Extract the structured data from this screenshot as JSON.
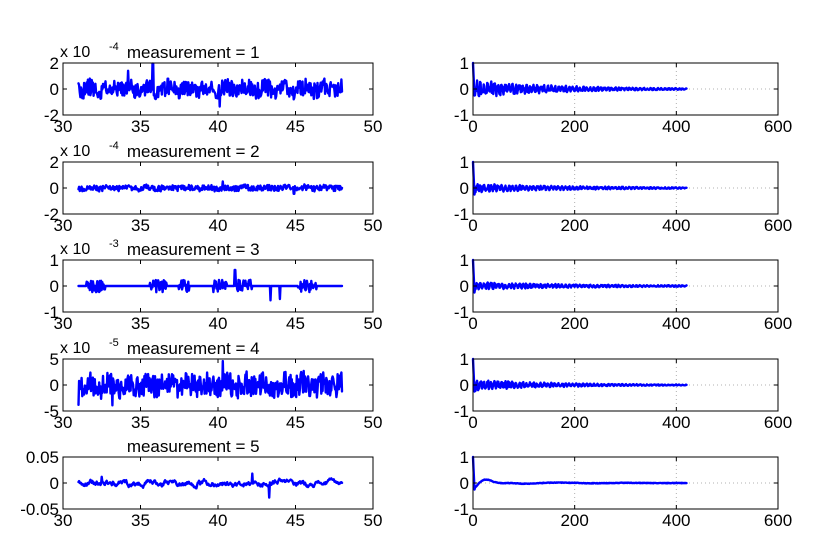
{
  "line_color": "#0000ff",
  "chart_data": [
    {
      "type": "line",
      "title": "measurement = 1",
      "scale_exponent": "x 10",
      "scale_power": "-4",
      "xlim": [
        30,
        50
      ],
      "ylim": [
        -2,
        2
      ],
      "x_ticks": [
        "30",
        "35",
        "40",
        "45",
        "50"
      ],
      "y_ticks": [
        "-2",
        "0",
        "2"
      ],
      "x_range": [
        31,
        48
      ],
      "amplitude": 0.65,
      "kind": "noise",
      "seed": 11,
      "spikes": [
        [
          35.8,
          1.95
        ],
        [
          40.1,
          -1.35
        ],
        [
          34.2,
          1.4
        ]
      ]
    },
    {
      "type": "line",
      "xlim": [
        0,
        600
      ],
      "ylim": [
        -1,
        1
      ],
      "x_ticks": [
        "0",
        "200",
        "400",
        "600"
      ],
      "y_ticks": [
        "-1",
        "0",
        "1"
      ],
      "x_range": [
        0,
        420
      ],
      "kind": "acf",
      "initial": 1,
      "envelope": 0.28,
      "decay": 170,
      "seed": 21,
      "grid": true
    },
    {
      "type": "line",
      "title": "measurement = 2",
      "scale_exponent": "x 10",
      "scale_power": "-4",
      "xlim": [
        30,
        50
      ],
      "ylim": [
        -2,
        2
      ],
      "x_ticks": [
        "30",
        "35",
        "40",
        "45",
        "50"
      ],
      "y_ticks": [
        "-2",
        "0",
        "2"
      ],
      "x_range": [
        31,
        48
      ],
      "amplitude": 0.22,
      "kind": "noise",
      "seed": 12,
      "spikes": [
        [
          40.3,
          0.5
        ],
        [
          44.9,
          -0.45
        ]
      ]
    },
    {
      "type": "line",
      "xlim": [
        0,
        600
      ],
      "ylim": [
        -1,
        1
      ],
      "x_ticks": [
        "0",
        "200",
        "400",
        "600"
      ],
      "y_ticks": [
        "-1",
        "0",
        "1"
      ],
      "x_range": [
        0,
        420
      ],
      "kind": "acf",
      "initial": 1,
      "envelope": 0.14,
      "decay": 220,
      "seed": 22,
      "grid": true
    },
    {
      "type": "line",
      "title": "measurement = 3",
      "scale_exponent": "x 10",
      "scale_power": "-3",
      "xlim": [
        30,
        50
      ],
      "ylim": [
        -1,
        1
      ],
      "x_ticks": [
        "30",
        "35",
        "40",
        "45",
        "50"
      ],
      "y_ticks": [
        "-1",
        "0",
        "1"
      ],
      "x_range": [
        31,
        48
      ],
      "amplitude": 0.24,
      "kind": "bursty",
      "seed": 13,
      "spikes": [
        [
          41.1,
          0.62
        ],
        [
          43.4,
          -0.55
        ],
        [
          44.0,
          -0.5
        ]
      ]
    },
    {
      "type": "line",
      "xlim": [
        0,
        600
      ],
      "ylim": [
        -1,
        1
      ],
      "x_ticks": [
        "0",
        "200",
        "400",
        "600"
      ],
      "y_ticks": [
        "-1",
        "0",
        "1"
      ],
      "x_range": [
        0,
        420
      ],
      "kind": "acf",
      "initial": 1,
      "envelope": 0.12,
      "decay": 240,
      "seed": 23,
      "grid": true
    },
    {
      "type": "line",
      "title": "measurement = 4",
      "scale_exponent": "x 10",
      "scale_power": "-5",
      "xlim": [
        30,
        50
      ],
      "ylim": [
        -5,
        5
      ],
      "x_ticks": [
        "30",
        "35",
        "40",
        "45",
        "50"
      ],
      "y_ticks": [
        "-5",
        "0",
        "5"
      ],
      "x_range": [
        31,
        48
      ],
      "amplitude": 2.2,
      "kind": "noise",
      "seed": 14,
      "spikes": [
        [
          40.3,
          4.6
        ],
        [
          31.0,
          -3.8
        ],
        [
          33.2,
          -3.9
        ]
      ]
    },
    {
      "type": "line",
      "xlim": [
        0,
        600
      ],
      "ylim": [
        -1,
        1
      ],
      "x_ticks": [
        "0",
        "200",
        "400",
        "600"
      ],
      "y_ticks": [
        "-1",
        "0",
        "1"
      ],
      "x_range": [
        0,
        420
      ],
      "kind": "acf",
      "initial": 1,
      "envelope": 0.18,
      "decay": 160,
      "seed": 24,
      "grid": true
    },
    {
      "type": "line",
      "title": "measurement = 5",
      "xlim": [
        30,
        50
      ],
      "ylim": [
        -0.05,
        0.05
      ],
      "x_ticks": [
        "30",
        "35",
        "40",
        "45",
        "50"
      ],
      "y_ticks": [
        "-0.05",
        "0",
        "0.05"
      ],
      "x_range": [
        31,
        48
      ],
      "amplitude": 0.006,
      "kind": "smooth",
      "seed": 15,
      "spikes": [
        [
          43.3,
          -0.028
        ],
        [
          42.2,
          0.018
        ],
        [
          32.5,
          0.012
        ]
      ]
    },
    {
      "type": "line",
      "xlim": [
        0,
        600
      ],
      "ylim": [
        -1,
        1
      ],
      "x_ticks": [
        "0",
        "200",
        "400",
        "600"
      ],
      "y_ticks": [
        "-1",
        "0",
        "1"
      ],
      "x_range": [
        0,
        420
      ],
      "kind": "acf_smooth",
      "initial": 1,
      "envelope": 0.12,
      "decay": 130,
      "seed": 25,
      "grid": true
    }
  ]
}
